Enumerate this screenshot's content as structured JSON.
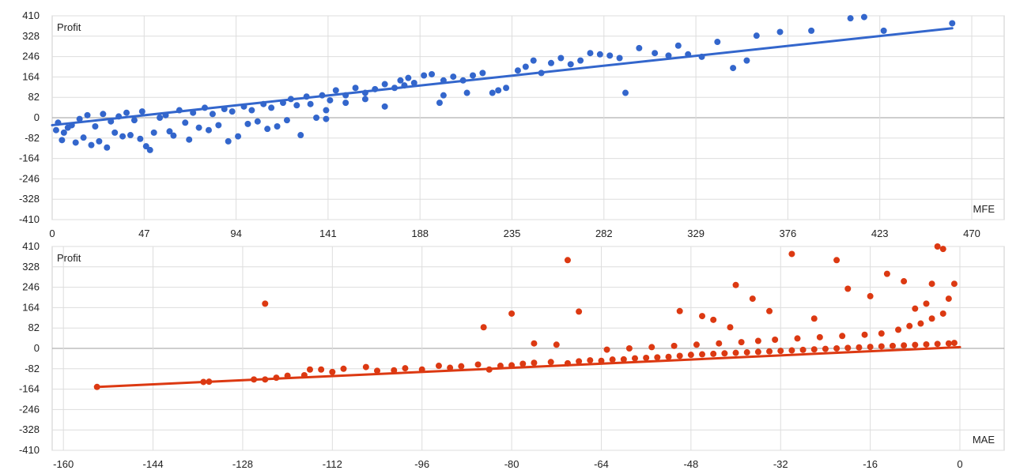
{
  "chart_data": [
    {
      "type": "scatter",
      "title": "",
      "xlabel": "MFE",
      "ylabel": "Profit",
      "xlim": [
        0,
        470
      ],
      "ylim": [
        -410,
        410
      ],
      "x_ticks": [
        "0",
        "47",
        "94",
        "141",
        "188",
        "235",
        "282",
        "329",
        "376",
        "423",
        "470"
      ],
      "y_ticks": [
        "410",
        "328",
        "246",
        "164",
        "82",
        "0",
        "-82",
        "-164",
        "-246",
        "-328",
        "-410"
      ],
      "color": "#3366cc",
      "grid": true,
      "trendline": {
        "x": [
          0,
          460
        ],
        "y": [
          -30,
          360
        ]
      },
      "points": [
        [
          5,
          -90
        ],
        [
          8,
          -40
        ],
        [
          12,
          -100
        ],
        [
          16,
          -80
        ],
        [
          20,
          -110
        ],
        [
          24,
          -95
        ],
        [
          28,
          -120
        ],
        [
          32,
          -60
        ],
        [
          36,
          -75
        ],
        [
          40,
          -70
        ],
        [
          45,
          -85
        ],
        [
          48,
          -115
        ],
        [
          50,
          -130
        ],
        [
          52,
          -60
        ],
        [
          60,
          -55
        ],
        [
          62,
          -72
        ],
        [
          70,
          -88
        ],
        [
          75,
          -40
        ],
        [
          80,
          -50
        ],
        [
          85,
          -30
        ],
        [
          90,
          -95
        ],
        [
          95,
          -75
        ],
        [
          100,
          -25
        ],
        [
          105,
          -15
        ],
        [
          110,
          -45
        ],
        [
          115,
          -35
        ],
        [
          120,
          -10
        ],
        [
          127,
          -70
        ],
        [
          135,
          0
        ],
        [
          140,
          -5
        ],
        [
          2,
          -50
        ],
        [
          3,
          -20
        ],
        [
          6,
          -60
        ],
        [
          10,
          -30
        ],
        [
          14,
          -5
        ],
        [
          18,
          10
        ],
        [
          22,
          -35
        ],
        [
          26,
          15
        ],
        [
          30,
          -15
        ],
        [
          34,
          5
        ],
        [
          38,
          20
        ],
        [
          42,
          -10
        ],
        [
          46,
          25
        ],
        [
          55,
          0
        ],
        [
          58,
          10
        ],
        [
          65,
          30
        ],
        [
          68,
          -20
        ],
        [
          72,
          20
        ],
        [
          78,
          40
        ],
        [
          82,
          15
        ],
        [
          88,
          35
        ],
        [
          92,
          25
        ],
        [
          98,
          45
        ],
        [
          102,
          30
        ],
        [
          108,
          55
        ],
        [
          112,
          40
        ],
        [
          118,
          60
        ],
        [
          122,
          75
        ],
        [
          125,
          50
        ],
        [
          130,
          85
        ],
        [
          132,
          55
        ],
        [
          138,
          90
        ],
        [
          142,
          70
        ],
        [
          145,
          110
        ],
        [
          150,
          90
        ],
        [
          155,
          120
        ],
        [
          160,
          100
        ],
        [
          165,
          115
        ],
        [
          170,
          135
        ],
        [
          175,
          120
        ],
        [
          178,
          150
        ],
        [
          182,
          160
        ],
        [
          185,
          140
        ],
        [
          190,
          170
        ],
        [
          194,
          175
        ],
        [
          198,
          60
        ],
        [
          200,
          150
        ],
        [
          205,
          165
        ],
        [
          210,
          150
        ],
        [
          215,
          170
        ],
        [
          220,
          180
        ],
        [
          228,
          110
        ],
        [
          232,
          120
        ],
        [
          238,
          190
        ],
        [
          242,
          205
        ],
        [
          246,
          230
        ],
        [
          250,
          180
        ],
        [
          255,
          220
        ],
        [
          260,
          240
        ],
        [
          265,
          215
        ],
        [
          270,
          230
        ],
        [
          275,
          260
        ],
        [
          280,
          255
        ],
        [
          285,
          250
        ],
        [
          290,
          240
        ],
        [
          293,
          100
        ],
        [
          300,
          280
        ],
        [
          308,
          260
        ],
        [
          315,
          250
        ],
        [
          320,
          290
        ],
        [
          325,
          255
        ],
        [
          332,
          245
        ],
        [
          340,
          305
        ],
        [
          348,
          200
        ],
        [
          355,
          230
        ],
        [
          360,
          330
        ],
        [
          372,
          345
        ],
        [
          388,
          350
        ],
        [
          408,
          400
        ],
        [
          415,
          405
        ],
        [
          425,
          350
        ],
        [
          460,
          380
        ],
        [
          200,
          90
        ],
        [
          212,
          100
        ],
        [
          225,
          100
        ],
        [
          180,
          130
        ],
        [
          170,
          45
        ],
        [
          160,
          75
        ],
        [
          150,
          60
        ],
        [
          140,
          30
        ]
      ]
    },
    {
      "type": "scatter",
      "title": "",
      "xlabel": "MAE",
      "ylabel": "Profit",
      "xlim": [
        -162,
        0
      ],
      "ylim": [
        -410,
        410
      ],
      "x_ticks": [
        "-160",
        "-144",
        "-128",
        "-112",
        "-96",
        "-80",
        "-64",
        "-48",
        "-32",
        "-16",
        "0"
      ],
      "y_ticks": [
        "410",
        "328",
        "246",
        "164",
        "82",
        "0",
        "-82",
        "-164",
        "-246",
        "-328",
        "-410"
      ],
      "color": "#dc3912",
      "grid": true,
      "trendline": {
        "x": [
          -154,
          0
        ],
        "y": [
          -155,
          5
        ]
      },
      "points": [
        [
          -154,
          -155
        ],
        [
          -135,
          -135
        ],
        [
          -134,
          -134
        ],
        [
          -126,
          -125
        ],
        [
          -124,
          -125
        ],
        [
          -122,
          -118
        ],
        [
          -120,
          -110
        ],
        [
          -117,
          -108
        ],
        [
          -116,
          -85
        ],
        [
          -114,
          -85
        ],
        [
          -112,
          -95
        ],
        [
          -110,
          -82
        ],
        [
          -106,
          -75
        ],
        [
          -104,
          -90
        ],
        [
          -101,
          -88
        ],
        [
          -99,
          -80
        ],
        [
          -96,
          -85
        ],
        [
          -93,
          -70
        ],
        [
          -91,
          -78
        ],
        [
          -89,
          -72
        ],
        [
          -86,
          -65
        ],
        [
          -84,
          -85
        ],
        [
          -82,
          -70
        ],
        [
          -80,
          -68
        ],
        [
          -78,
          -62
        ],
        [
          -76,
          -58
        ],
        [
          -73,
          -55
        ],
        [
          -70,
          -60
        ],
        [
          -68,
          -52
        ],
        [
          -66,
          -48
        ],
        [
          -64,
          -50
        ],
        [
          -62,
          -45
        ],
        [
          -60,
          -44
        ],
        [
          -58,
          -40
        ],
        [
          -56,
          -38
        ],
        [
          -54,
          -36
        ],
        [
          -52,
          -34
        ],
        [
          -50,
          -30
        ],
        [
          -48,
          -26
        ],
        [
          -46,
          -24
        ],
        [
          -44,
          -22
        ],
        [
          -42,
          -20
        ],
        [
          -40,
          -18
        ],
        [
          -38,
          -16
        ],
        [
          -36,
          -14
        ],
        [
          -34,
          -12
        ],
        [
          -32,
          -10
        ],
        [
          -30,
          -8
        ],
        [
          -28,
          -6
        ],
        [
          -26,
          -4
        ],
        [
          -24,
          -2
        ],
        [
          -22,
          0
        ],
        [
          -20,
          2
        ],
        [
          -18,
          4
        ],
        [
          -16,
          6
        ],
        [
          -14,
          8
        ],
        [
          -12,
          10
        ],
        [
          -10,
          12
        ],
        [
          -8,
          14
        ],
        [
          -6,
          16
        ],
        [
          -4,
          18
        ],
        [
          -2,
          20
        ],
        [
          -1,
          22
        ],
        [
          -124,
          180
        ],
        [
          -85,
          85
        ],
        [
          -76,
          20
        ],
        [
          -72,
          15
        ],
        [
          -70,
          355
        ],
        [
          -80,
          140
        ],
        [
          -68,
          148
        ],
        [
          -50,
          150
        ],
        [
          -46,
          130
        ],
        [
          -44,
          115
        ],
        [
          -41,
          85
        ],
        [
          -40,
          255
        ],
        [
          -37,
          200
        ],
        [
          -34,
          150
        ],
        [
          -30,
          380
        ],
        [
          -26,
          120
        ],
        [
          -22,
          355
        ],
        [
          -20,
          240
        ],
        [
          -16,
          210
        ],
        [
          -13,
          300
        ],
        [
          -10,
          270
        ],
        [
          -8,
          160
        ],
        [
          -6,
          180
        ],
        [
          -5,
          260
        ],
        [
          -4,
          410
        ],
        [
          -3,
          400
        ],
        [
          -1,
          260
        ],
        [
          -2,
          200
        ],
        [
          -3,
          140
        ],
        [
          -5,
          120
        ],
        [
          -7,
          100
        ],
        [
          -9,
          90
        ],
        [
          -11,
          75
        ],
        [
          -14,
          60
        ],
        [
          -17,
          55
        ],
        [
          -21,
          50
        ],
        [
          -25,
          45
        ],
        [
          -29,
          40
        ],
        [
          -33,
          35
        ],
        [
          -36,
          30
        ],
        [
          -39,
          25
        ],
        [
          -43,
          20
        ],
        [
          -47,
          15
        ],
        [
          -51,
          10
        ],
        [
          -55,
          5
        ],
        [
          -59,
          0
        ],
        [
          -63,
          -5
        ]
      ]
    }
  ]
}
